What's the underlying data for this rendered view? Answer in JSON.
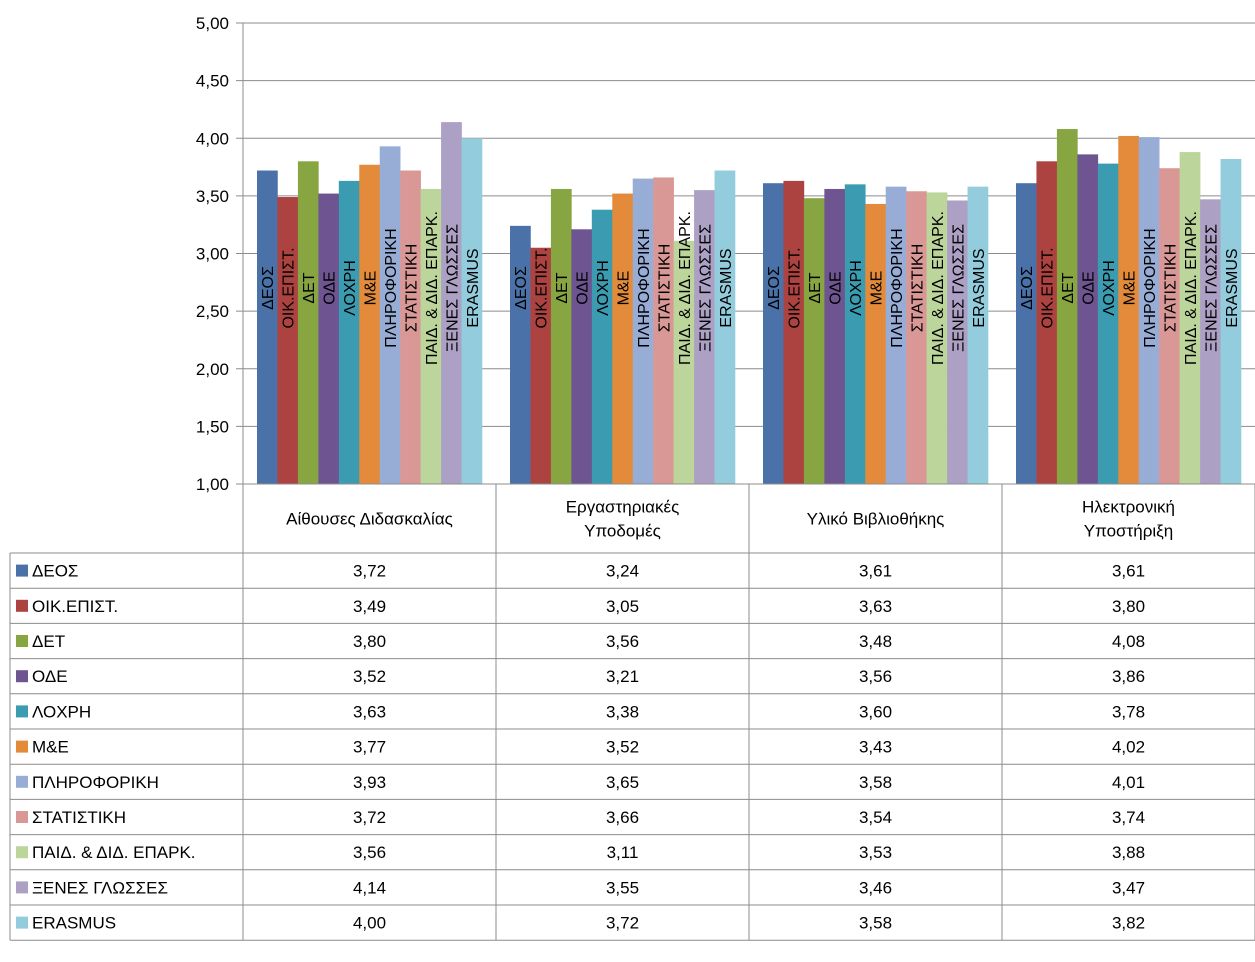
{
  "chart_data": {
    "type": "bar",
    "categories": [
      [
        "Αίθουσες Διδασκαλίας"
      ],
      [
        "Εργαστηριακές",
        "Υποδομές"
      ],
      [
        "Υλικό Βιβλιοθήκης"
      ],
      [
        "Ηλεκτρονική",
        "Υποστήριξη"
      ]
    ],
    "ylim": [
      1,
      5
    ],
    "yticks": [
      "1,00",
      "1,50",
      "2,00",
      "2,50",
      "3,00",
      "3,50",
      "4,00",
      "4,50",
      "5,00"
    ],
    "grid": true,
    "legend": "data-table",
    "series": [
      {
        "name": "ΔΕΟΣ",
        "color": "#4A72A8",
        "values": [
          3.72,
          3.24,
          3.61,
          3.61
        ],
        "labels": [
          "3,72",
          "3,24",
          "3,61",
          "3,61"
        ]
      },
      {
        "name": "ΟΙΚ.ΕΠΙΣΤ.",
        "color": "#AC4340",
        "values": [
          3.49,
          3.05,
          3.63,
          3.8
        ],
        "labels": [
          "3,49",
          "3,05",
          "3,63",
          "3,80"
        ]
      },
      {
        "name": "ΔΕΤ",
        "color": "#87A642",
        "values": [
          3.8,
          3.56,
          3.48,
          4.08
        ],
        "labels": [
          "3,80",
          "3,56",
          "3,48",
          "4,08"
        ]
      },
      {
        "name": "ΟΔΕ",
        "color": "#6E5490",
        "values": [
          3.52,
          3.21,
          3.56,
          3.86
        ],
        "labels": [
          "3,52",
          "3,21",
          "3,56",
          "3,86"
        ]
      },
      {
        "name": "ΛΟΧΡΗ",
        "color": "#3B9BB1",
        "values": [
          3.63,
          3.38,
          3.6,
          3.78
        ],
        "labels": [
          "3,63",
          "3,38",
          "3,60",
          "3,78"
        ]
      },
      {
        "name": "Μ&Ε",
        "color": "#E38B3B",
        "values": [
          3.77,
          3.52,
          3.43,
          4.02
        ],
        "labels": [
          "3,77",
          "3,52",
          "3,43",
          "4,02"
        ]
      },
      {
        "name": "ΠΛΗΡΟΦΟΡΙΚΗ",
        "color": "#98ADD6",
        "values": [
          3.93,
          3.65,
          3.58,
          4.01
        ],
        "labels": [
          "3,93",
          "3,65",
          "3,58",
          "4,01"
        ]
      },
      {
        "name": "ΣΤΑΤΙΣΤΙΚΗ",
        "color": "#D99896",
        "values": [
          3.72,
          3.66,
          3.54,
          3.74
        ],
        "labels": [
          "3,72",
          "3,66",
          "3,54",
          "3,74"
        ]
      },
      {
        "name": "ΠΑΙΔ. & ΔΙΔ. ΕΠΑΡΚ.",
        "color": "#BCD59A",
        "values": [
          3.56,
          3.11,
          3.53,
          3.88
        ],
        "labels": [
          "3,56",
          "3,11",
          "3,53",
          "3,88"
        ]
      },
      {
        "name": "ΞΕΝΕΣ ΓΛΩΣΣΕΣ",
        "color": "#ACA0C4",
        "values": [
          4.14,
          3.55,
          3.46,
          3.47
        ],
        "labels": [
          "4,14",
          "3,55",
          "3,46",
          "3,47"
        ]
      },
      {
        "name": "ERASMUS",
        "color": "#93CCDC",
        "values": [
          4.0,
          3.72,
          3.58,
          3.82
        ],
        "labels": [
          "4,00",
          "3,72",
          "3,58",
          "3,82"
        ]
      }
    ]
  }
}
